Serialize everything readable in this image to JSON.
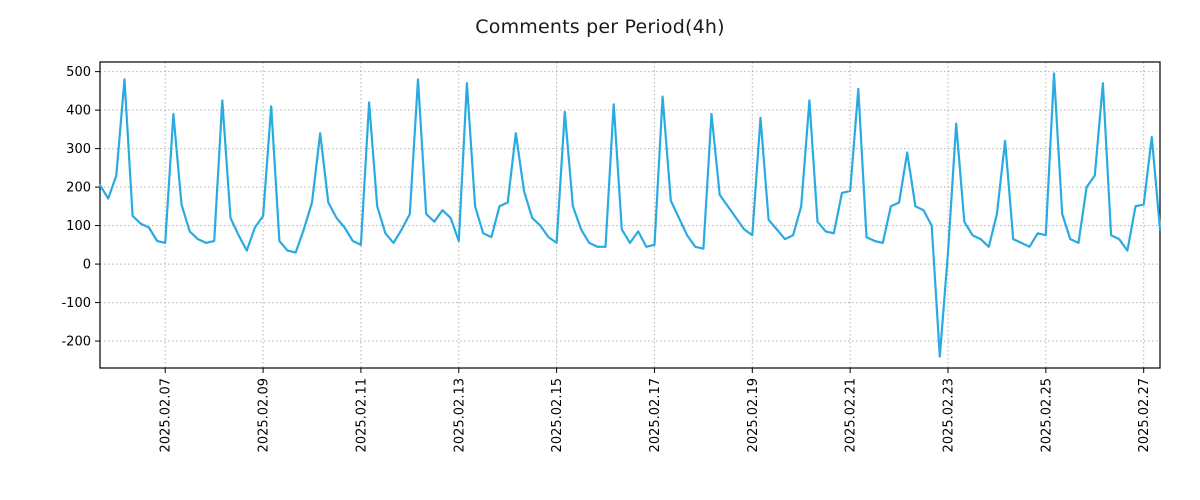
{
  "chart_data": {
    "type": "line",
    "title": "Comments per Period(4h)",
    "period": "4h",
    "line_color": "#29abe2",
    "grid_color": "#b3b3b3",
    "legend_position": "none",
    "grid": true,
    "ylim": [
      -270,
      525
    ],
    "y_ticks": [
      -200,
      -100,
      0,
      100,
      200,
      300,
      400,
      500
    ],
    "x_tick_labels": [
      "2025.02.07",
      "2025.02.09",
      "2025.02.11",
      "2025.02.13",
      "2025.02.15",
      "2025.02.17",
      "2025.02.19",
      "2025.02.21",
      "2025.02.23",
      "2025.02.25",
      "2025.02.27"
    ],
    "x_tick_indices": [
      8,
      20,
      32,
      44,
      56,
      68,
      80,
      92,
      104,
      116,
      128
    ],
    "x_start": "2025.02.05 16:00",
    "x_step_hours": 4,
    "values": [
      205,
      170,
      230,
      480,
      125,
      105,
      95,
      60,
      55,
      390,
      155,
      85,
      65,
      55,
      60,
      425,
      120,
      75,
      35,
      95,
      125,
      410,
      60,
      35,
      30,
      90,
      160,
      340,
      160,
      120,
      95,
      60,
      50,
      420,
      150,
      80,
      55,
      90,
      130,
      480,
      130,
      110,
      140,
      120,
      60,
      470,
      150,
      80,
      70,
      150,
      160,
      340,
      190,
      120,
      100,
      70,
      55,
      395,
      150,
      90,
      55,
      45,
      45,
      415,
      90,
      55,
      85,
      45,
      50,
      435,
      165,
      120,
      75,
      45,
      40,
      390,
      180,
      150,
      120,
      90,
      75,
      380,
      115,
      90,
      65,
      75,
      150,
      425,
      110,
      85,
      80,
      185,
      190,
      455,
      70,
      60,
      55,
      150,
      160,
      290,
      150,
      140,
      100,
      -240,
      30,
      365,
      110,
      75,
      65,
      45,
      130,
      320,
      65,
      55,
      45,
      80,
      75,
      495,
      130,
      65,
      55,
      200,
      230,
      470,
      75,
      65,
      35,
      150,
      155,
      330,
      90
    ]
  }
}
